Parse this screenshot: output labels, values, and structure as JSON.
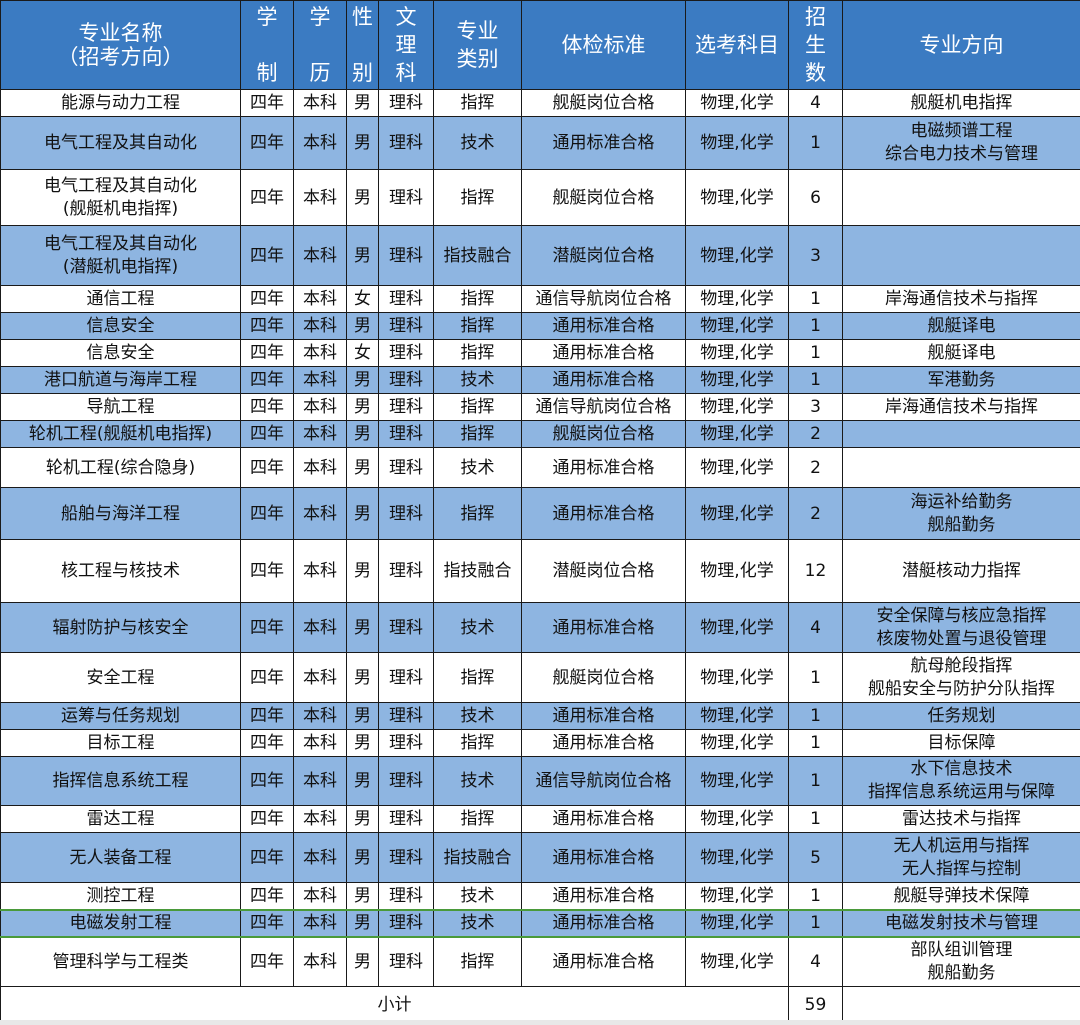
{
  "header": {
    "col_name": [
      "专业名称",
      "（招考方向）"
    ],
    "col_xuezhi": [
      "学",
      "制"
    ],
    "col_xueli": [
      "学",
      "历"
    ],
    "col_xingbie": [
      "性",
      "别"
    ],
    "col_wenli": [
      "文",
      "理",
      "科"
    ],
    "col_leibie": [
      "专业",
      "类别"
    ],
    "col_tijian": "体检标准",
    "col_xuankao": "选考科目",
    "col_zhaosheng": [
      "招",
      "生",
      "数"
    ],
    "col_fangxiang": "专业方向"
  },
  "rows": [
    {
      "name": [
        "能源与动力工程"
      ],
      "xz": "四年",
      "xl": "本科",
      "xb": "男",
      "wl": "理科",
      "lb": "指挥",
      "tj": "舰艇岗位合格",
      "xk": "物理,化学",
      "n": "4",
      "fx": [
        "舰艇机电指挥"
      ]
    },
    {
      "name": [
        "电气工程及其自动化"
      ],
      "xz": "四年",
      "xl": "本科",
      "xb": "男",
      "wl": "理科",
      "lb": "技术",
      "tj": "通用标准合格",
      "xk": "物理,化学",
      "n": "1",
      "fx": [
        "电磁频谱工程",
        "综合电力技术与管理"
      ]
    },
    {
      "name": [
        "电气工程及其自动化",
        "(舰艇机电指挥)"
      ],
      "xz": "四年",
      "xl": "本科",
      "xb": "男",
      "wl": "理科",
      "lb": "指挥",
      "tj": "舰艇岗位合格",
      "xk": "物理,化学",
      "n": "6",
      "fx": []
    },
    {
      "name": [
        "电气工程及其自动化",
        "(潜艇机电指挥)"
      ],
      "xz": "四年",
      "xl": "本科",
      "xb": "男",
      "wl": "理科",
      "lb": "指技融合",
      "tj": "潜艇岗位合格",
      "xk": "物理,化学",
      "n": "3",
      "fx": []
    },
    {
      "name": [
        "通信工程"
      ],
      "xz": "四年",
      "xl": "本科",
      "xb": "女",
      "wl": "理科",
      "lb": "指挥",
      "tj": "通信导航岗位合格",
      "xk": "物理,化学",
      "n": "1",
      "fx": [
        "岸海通信技术与指挥"
      ]
    },
    {
      "name": [
        "信息安全"
      ],
      "xz": "四年",
      "xl": "本科",
      "xb": "男",
      "wl": "理科",
      "lb": "指挥",
      "tj": "通用标准合格",
      "xk": "物理,化学",
      "n": "1",
      "fx": [
        "舰艇译电"
      ]
    },
    {
      "name": [
        "信息安全"
      ],
      "xz": "四年",
      "xl": "本科",
      "xb": "女",
      "wl": "理科",
      "lb": "指挥",
      "tj": "通用标准合格",
      "xk": "物理,化学",
      "n": "1",
      "fx": [
        "舰艇译电"
      ]
    },
    {
      "name": [
        "港口航道与海岸工程"
      ],
      "xz": "四年",
      "xl": "本科",
      "xb": "男",
      "wl": "理科",
      "lb": "技术",
      "tj": "通用标准合格",
      "xk": "物理,化学",
      "n": "1",
      "fx": [
        "军港勤务"
      ]
    },
    {
      "name": [
        "导航工程"
      ],
      "xz": "四年",
      "xl": "本科",
      "xb": "男",
      "wl": "理科",
      "lb": "指挥",
      "tj": "通信导航岗位合格",
      "xk": "物理,化学",
      "n": "3",
      "fx": [
        "岸海通信技术与指挥"
      ]
    },
    {
      "name": [
        "轮机工程(舰艇机电指挥)"
      ],
      "xz": "四年",
      "xl": "本科",
      "xb": "男",
      "wl": "理科",
      "lb": "指挥",
      "tj": "舰艇岗位合格",
      "xk": "物理,化学",
      "n": "2",
      "fx": []
    },
    {
      "name": [
        "轮机工程(综合隐身)"
      ],
      "xz": "四年",
      "xl": "本科",
      "xb": "男",
      "wl": "理科",
      "lb": "技术",
      "tj": "通用标准合格",
      "xk": "物理,化学",
      "n": "2",
      "fx": []
    },
    {
      "name": [
        "船舶与海洋工程"
      ],
      "xz": "四年",
      "xl": "本科",
      "xb": "男",
      "wl": "理科",
      "lb": "指挥",
      "tj": "通用标准合格",
      "xk": "物理,化学",
      "n": "2",
      "fx": [
        "海运补给勤务",
        "舰船勤务"
      ]
    },
    {
      "name": [
        "核工程与核技术"
      ],
      "xz": "四年",
      "xl": "本科",
      "xb": "男",
      "wl": "理科",
      "lb": "指技融合",
      "tj": "潜艇岗位合格",
      "xk": "物理,化学",
      "n": "12",
      "fx": [
        "潜艇核动力指挥"
      ]
    },
    {
      "name": [
        "辐射防护与核安全"
      ],
      "xz": "四年",
      "xl": "本科",
      "xb": "男",
      "wl": "理科",
      "lb": "技术",
      "tj": "通用标准合格",
      "xk": "物理,化学",
      "n": "4",
      "fx": [
        "安全保障与核应急指挥",
        "核废物处置与退役管理"
      ]
    },
    {
      "name": [
        "安全工程"
      ],
      "xz": "四年",
      "xl": "本科",
      "xb": "男",
      "wl": "理科",
      "lb": "指挥",
      "tj": "舰艇岗位合格",
      "xk": "物理,化学",
      "n": "1",
      "fx": [
        "航母舱段指挥",
        "舰船安全与防护分队指挥"
      ]
    },
    {
      "name": [
        "运筹与任务规划"
      ],
      "xz": "四年",
      "xl": "本科",
      "xb": "男",
      "wl": "理科",
      "lb": "技术",
      "tj": "通用标准合格",
      "xk": "物理,化学",
      "n": "1",
      "fx": [
        "任务规划"
      ]
    },
    {
      "name": [
        "目标工程"
      ],
      "xz": "四年",
      "xl": "本科",
      "xb": "男",
      "wl": "理科",
      "lb": "指挥",
      "tj": "通用标准合格",
      "xk": "物理,化学",
      "n": "1",
      "fx": [
        "目标保障"
      ]
    },
    {
      "name": [
        "指挥信息系统工程"
      ],
      "xz": "四年",
      "xl": "本科",
      "xb": "男",
      "wl": "理科",
      "lb": "技术",
      "tj": "通信导航岗位合格",
      "xk": "物理,化学",
      "n": "1",
      "fx": [
        "水下信息技术",
        "指挥信息系统运用与保障"
      ]
    },
    {
      "name": [
        "雷达工程"
      ],
      "xz": "四年",
      "xl": "本科",
      "xb": "男",
      "wl": "理科",
      "lb": "指挥",
      "tj": "通用标准合格",
      "xk": "物理,化学",
      "n": "1",
      "fx": [
        "雷达技术与指挥"
      ]
    },
    {
      "name": [
        "无人装备工程"
      ],
      "xz": "四年",
      "xl": "本科",
      "xb": "男",
      "wl": "理科",
      "lb": "指技融合",
      "tj": "通用标准合格",
      "xk": "物理,化学",
      "n": "5",
      "fx": [
        "无人机运用与指挥",
        "无人指挥与控制"
      ]
    },
    {
      "name": [
        "测控工程"
      ],
      "xz": "四年",
      "xl": "本科",
      "xb": "男",
      "wl": "理科",
      "lb": "技术",
      "tj": "通用标准合格",
      "xk": "物理,化学",
      "n": "1",
      "fx": [
        "舰艇导弹技术保障"
      ]
    },
    {
      "name": [
        "电磁发射工程"
      ],
      "xz": "四年",
      "xl": "本科",
      "xb": "男",
      "wl": "理科",
      "lb": "技术",
      "tj": "通用标准合格",
      "xk": "物理,化学",
      "n": "1",
      "fx": [
        "电磁发射技术与管理"
      ]
    },
    {
      "name": [
        "管理科学与工程类"
      ],
      "xz": "四年",
      "xl": "本科",
      "xb": "男",
      "wl": "理科",
      "lb": "指挥",
      "tj": "通用标准合格",
      "xk": "物理,化学",
      "n": "4",
      "fx": [
        "部队组训管理",
        "舰船勤务"
      ]
    }
  ],
  "footer": {
    "label": "小计",
    "total": "59"
  }
}
